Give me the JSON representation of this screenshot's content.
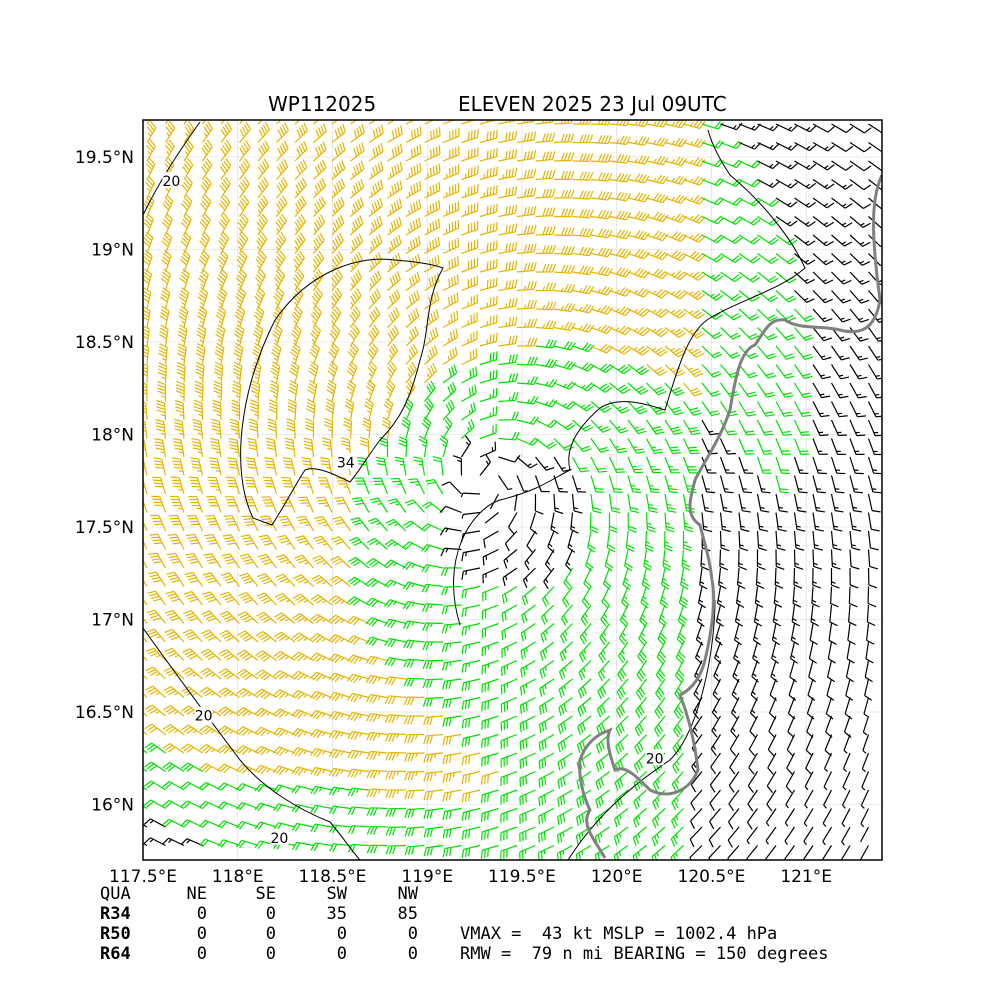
{
  "title": {
    "storm_id": "WP112025",
    "storm_info": "ELEVEN 2025 23 Jul 09UTC"
  },
  "chart_data": {
    "type": "wind-barb-map",
    "lon_range": [
      117.5,
      121.4
    ],
    "lat_range": [
      15.7,
      19.7
    ],
    "x_ticks": [
      "117.5°E",
      "118°E",
      "118.5°E",
      "119°E",
      "119.5°E",
      "120°E",
      "120.5°E",
      "121°E"
    ],
    "x_tick_values": [
      117.5,
      118.0,
      118.5,
      119.0,
      119.5,
      120.0,
      120.5,
      121.0
    ],
    "y_ticks": [
      "16°N",
      "16.5°N",
      "17°N",
      "17.5°N",
      "18°N",
      "18.5°N",
      "19°N",
      "19.5°N"
    ],
    "y_tick_values": [
      16.0,
      16.5,
      17.0,
      17.5,
      18.0,
      18.5,
      19.0,
      19.5
    ],
    "grid": true,
    "storm_center": {
      "lon": 119.3,
      "lat": 17.75
    },
    "barb_colors": {
      "below_20": "#000000",
      "20_to_34": "#00e000",
      "above_34": "#e6b400"
    },
    "contour_labels": [
      "20",
      "20",
      "20",
      "34",
      "20"
    ],
    "contour_label_positions": [
      {
        "text": "20",
        "lon": 117.65,
        "lat": 19.37
      },
      {
        "text": "20",
        "lon": 117.82,
        "lat": 16.48
      },
      {
        "text": "20",
        "lon": 118.22,
        "lat": 15.82
      },
      {
        "text": "34",
        "lon": 118.57,
        "lat": 17.85
      },
      {
        "text": "20",
        "lon": 120.2,
        "lat": 16.25
      }
    ]
  },
  "table": {
    "headers": [
      "QUA",
      "NE",
      "SE",
      "SW",
      "NW"
    ],
    "rows": [
      {
        "label": "R34",
        "values": [
          "0",
          "0",
          "35",
          "85"
        ]
      },
      {
        "label": "R50",
        "values": [
          "0",
          "0",
          "0",
          "0"
        ]
      },
      {
        "label": "R64",
        "values": [
          "0",
          "0",
          "0",
          "0"
        ]
      }
    ]
  },
  "stats": {
    "line1": "VMAX =  43 kt MSLP = 1002.4 hPa",
    "line2": "RMW =  79 n mi BEARING = 150 degrees"
  }
}
